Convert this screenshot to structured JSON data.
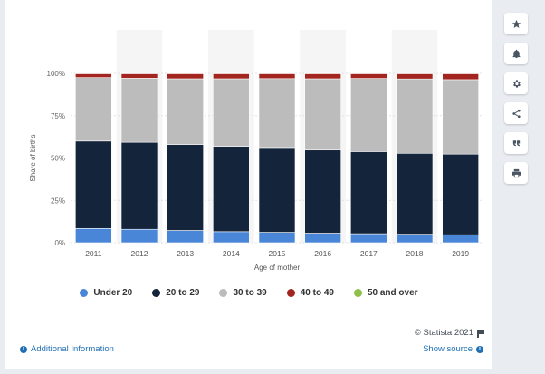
{
  "chart_data": {
    "type": "bar",
    "stacked": true,
    "categories": [
      "2011",
      "2012",
      "2013",
      "2014",
      "2015",
      "2016",
      "2017",
      "2018",
      "2019"
    ],
    "series": [
      {
        "name": "Under 20",
        "color": "#4a86d8",
        "values": [
          8.4,
          7.9,
          7.2,
          6.5,
          6.1,
          5.6,
          5.3,
          5.0,
          4.7
        ]
      },
      {
        "name": "20 to 29",
        "color": "#14243b",
        "values": [
          51.6,
          51.4,
          50.8,
          50.4,
          50.1,
          49.1,
          48.5,
          47.8,
          47.6
        ]
      },
      {
        "name": "30 to 39",
        "color": "#bcbcbc",
        "values": [
          37.5,
          37.8,
          38.8,
          39.9,
          40.7,
          42.1,
          43.2,
          43.9,
          44.0
        ]
      },
      {
        "name": "40 to 49",
        "color": "#a3251f",
        "values": [
          2.4,
          2.8,
          3.1,
          3.1,
          3.0,
          3.1,
          2.9,
          3.2,
          3.6
        ]
      },
      {
        "name": "50 and over",
        "color": "#8fc14a",
        "values": [
          0.1,
          0.1,
          0.1,
          0.1,
          0.1,
          0.1,
          0.1,
          0.1,
          0.1
        ]
      }
    ],
    "xlabel": "Age of mother",
    "ylabel": "Share of births",
    "ylim": [
      0,
      100
    ],
    "yticks": [
      "0%",
      "25%",
      "50%",
      "75%",
      "100%"
    ],
    "grid": true,
    "legend": "bottom"
  },
  "footer": {
    "credit": "© Statista 2021",
    "additional_info": "Additional Information",
    "show_source": "Show source"
  },
  "toolbar": {
    "icons": [
      "star-icon",
      "bell-icon",
      "gear-icon",
      "share-icon",
      "quote-icon",
      "print-icon"
    ]
  }
}
